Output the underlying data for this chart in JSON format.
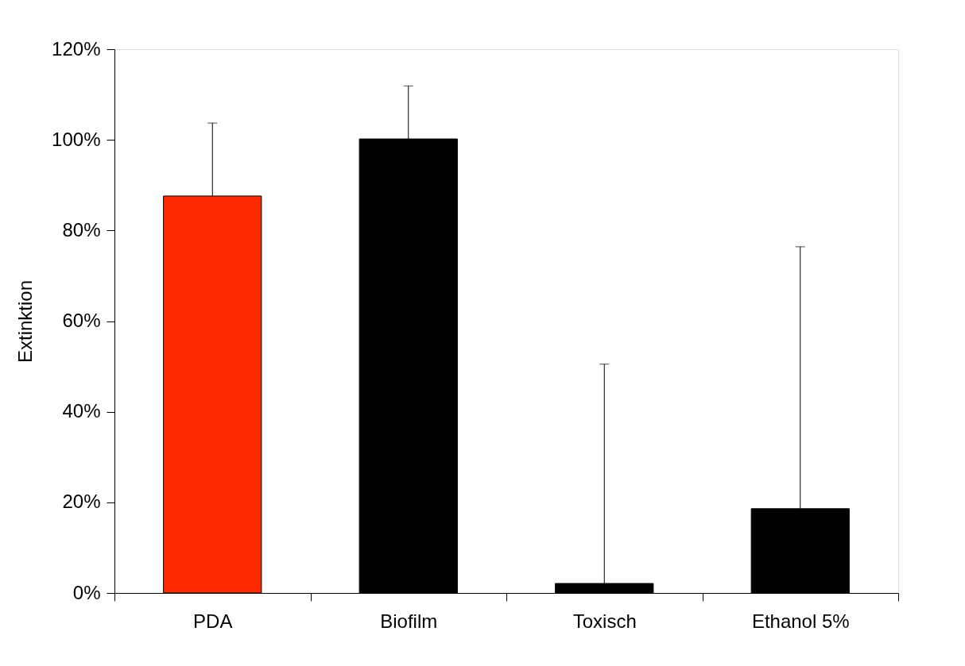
{
  "chart_data": {
    "type": "bar",
    "ylabel": "Extinktion",
    "categories": [
      "PDA",
      "Biofilm",
      "Toxisch",
      "Ethanol 5%"
    ],
    "values": [
      87.6,
      100.2,
      2.1,
      18.6
    ],
    "colors": [
      "#ff2a00",
      "#000000",
      "#000000",
      "#000000"
    ],
    "errors": [
      [
        87.6,
        103.7
      ],
      [
        100.2,
        111.9
      ],
      [
        2.1,
        50.5
      ],
      [
        18.6,
        76.4
      ]
    ],
    "ylim": [
      0,
      120
    ],
    "yticks": [
      {
        "value": 0,
        "label": "0%"
      },
      {
        "value": 20,
        "label": "20%"
      },
      {
        "value": 40,
        "label": "40%"
      },
      {
        "value": 60,
        "label": "60%"
      },
      {
        "value": 80,
        "label": "80%"
      },
      {
        "value": 100,
        "label": "100%"
      },
      {
        "value": 120,
        "label": "120%"
      }
    ],
    "grid": false
  }
}
